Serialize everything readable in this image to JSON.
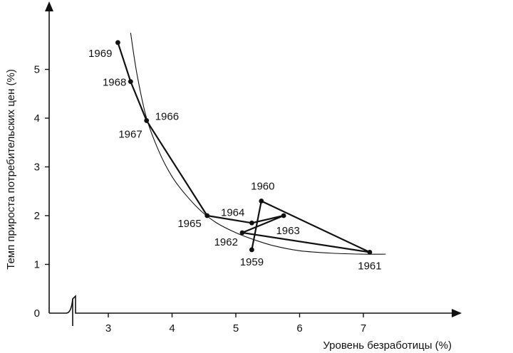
{
  "chart_data": {
    "type": "line",
    "title": "",
    "xlabel": "Уровень безработицы (%)",
    "ylabel": "Темп прироста потребительских цен (%)",
    "xlim": [
      2.5,
      7.5
    ],
    "ylim": [
      0,
      6
    ],
    "x_axis_break": true,
    "x_ticks": [
      3,
      4,
      5,
      6,
      7
    ],
    "y_ticks": [
      0,
      1,
      2,
      3,
      4,
      5
    ],
    "grid": false,
    "legend": "none",
    "points": [
      {
        "label": "1959",
        "x": 5.25,
        "y": 1.3
      },
      {
        "label": "1960",
        "x": 5.4,
        "y": 2.3
      },
      {
        "label": "1961",
        "x": 7.1,
        "y": 1.25
      },
      {
        "label": "1962",
        "x": 5.1,
        "y": 1.65
      },
      {
        "label": "1963",
        "x": 5.75,
        "y": 2.0
      },
      {
        "label": "1964",
        "x": 5.25,
        "y": 1.85
      },
      {
        "label": "1965",
        "x": 4.55,
        "y": 2.0
      },
      {
        "label": "1966",
        "x": 3.6,
        "y": 3.95
      },
      {
        "label": "1967",
        "x": 3.6,
        "y": 3.95
      },
      {
        "label": "1968",
        "x": 3.35,
        "y": 4.75
      },
      {
        "label": "1969",
        "x": 3.15,
        "y": 5.55
      }
    ],
    "phillips_curve": {
      "x": [
        3.35,
        3.45,
        3.6,
        3.8,
        4.0,
        4.2,
        4.45,
        4.7,
        5.0,
        5.3,
        5.6,
        6.0,
        6.5,
        7.0,
        7.35
      ],
      "y": [
        5.75,
        4.9,
        4.0,
        3.3,
        2.8,
        2.45,
        2.1,
        1.85,
        1.65,
        1.5,
        1.38,
        1.28,
        1.23,
        1.21,
        1.21
      ]
    }
  }
}
